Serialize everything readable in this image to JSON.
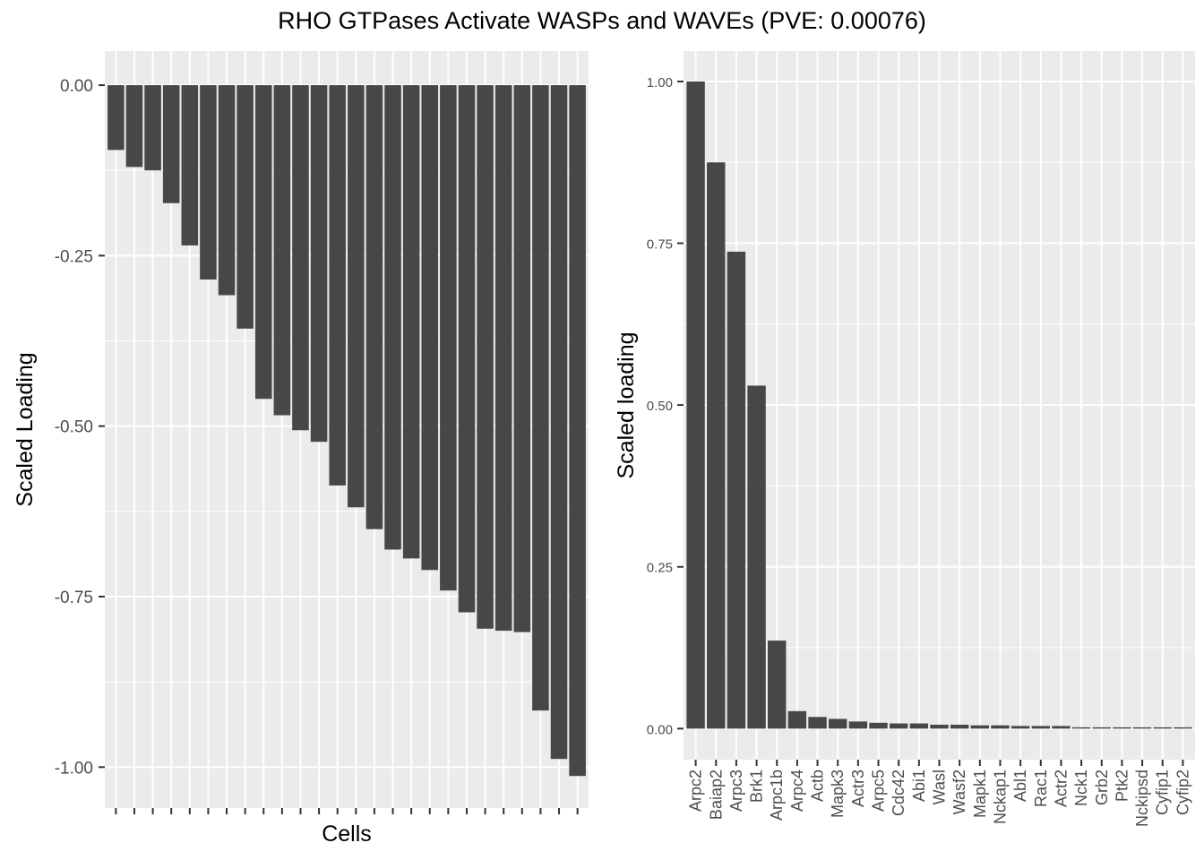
{
  "figure_title": "RHO GTPases Activate WASPs and WAVEs (PVE: 0.00076)",
  "chart_data": [
    {
      "type": "bar",
      "xlabel": "Cells",
      "ylabel": "Scaled Loading",
      "ylim": [
        -1.06,
        0.05
      ],
      "yticks": [
        0.0,
        -0.25,
        -0.5,
        -0.75,
        -1.0
      ],
      "ytick_labels": [
        "0.00",
        "-0.25",
        "-0.50",
        "-0.75",
        "-1.00"
      ],
      "grid": true,
      "bar_color": "#474747",
      "values": [
        -0.095,
        -0.12,
        -0.125,
        -0.173,
        -0.235,
        -0.285,
        -0.308,
        -0.357,
        -0.46,
        -0.484,
        -0.506,
        -0.523,
        -0.587,
        -0.619,
        -0.651,
        -0.681,
        -0.694,
        -0.711,
        -0.741,
        -0.773,
        -0.797,
        -0.8,
        -0.802,
        -0.917,
        -0.988,
        -1.013
      ]
    },
    {
      "type": "bar",
      "xlabel": "",
      "ylabel": "Scaled loading",
      "ylim": [
        -0.048,
        1.047
      ],
      "yticks": [
        0.0,
        0.25,
        0.5,
        0.75,
        1.0
      ],
      "ytick_labels": [
        "0.00",
        "0.25",
        "0.50",
        "0.75",
        "1.00"
      ],
      "grid": true,
      "bar_color": "#474747",
      "categories": [
        "Arpc2",
        "Baiap2",
        "Arpc3",
        "Brk1",
        "Arpc1b",
        "Arpc4",
        "Actb",
        "Mapk3",
        "Actr3",
        "Arpc5",
        "Cdc42",
        "Abi1",
        "Wasl",
        "Wasf2",
        "Mapk1",
        "Nckap1",
        "Abl1",
        "Rac1",
        "Actr2",
        "Nck1",
        "Grb2",
        "Ptk2",
        "Nckipsd",
        "Cyfip1",
        "Cyfip2"
      ],
      "values": [
        1.0,
        0.875,
        0.737,
        0.53,
        0.136,
        0.027,
        0.018,
        0.015,
        0.011,
        0.009,
        0.008,
        0.008,
        0.006,
        0.006,
        0.005,
        0.005,
        0.004,
        0.004,
        0.004,
        0.002,
        0.002,
        0.002,
        0.002,
        0.002,
        0.002
      ]
    }
  ]
}
